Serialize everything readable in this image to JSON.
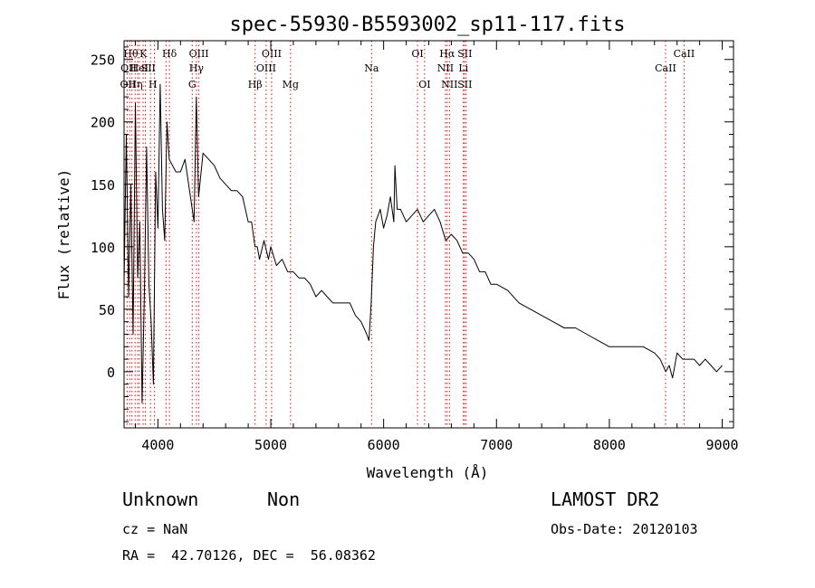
{
  "chart_data": {
    "type": "line",
    "title": "spec-55930-B5593002_sp11-117.fits",
    "xlabel": "Wavelength (Å)",
    "ylabel": "Flux (relative)",
    "xlim": [
      3700,
      9100
    ],
    "ylim": [
      -45,
      265
    ],
    "x_ticks": [
      4000,
      5000,
      6000,
      7000,
      8000,
      9000
    ],
    "y_ticks": [
      0,
      50,
      100,
      150,
      200,
      250
    ],
    "grid": false,
    "series": [
      {
        "x": [
          3700,
          3720,
          3740,
          3760,
          3780,
          3800,
          3820,
          3840,
          3860,
          3880,
          3900,
          3920,
          3940,
          3960,
          3980,
          4000,
          4020,
          4040,
          4060,
          4080,
          4100,
          4130,
          4160,
          4200,
          4240,
          4280,
          4320,
          4340,
          4360,
          4400,
          4450,
          4500,
          4550,
          4600,
          4650,
          4700,
          4750,
          4800,
          4830,
          4860,
          4880,
          4900,
          4940,
          4980,
          5000,
          5050,
          5100,
          5150,
          5200,
          5250,
          5300,
          5350,
          5400,
          5450,
          5500,
          5550,
          5600,
          5650,
          5700,
          5750,
          5800,
          5850,
          5870,
          5890,
          5910,
          5930,
          5950,
          5970,
          6000,
          6030,
          6060,
          6090,
          6100,
          6120,
          6150,
          6200,
          6250,
          6300,
          6350,
          6400,
          6450,
          6500,
          6550,
          6600,
          6650,
          6700,
          6750,
          6800,
          6850,
          6900,
          6950,
          7000,
          7100,
          7200,
          7300,
          7400,
          7500,
          7600,
          7700,
          7800,
          7900,
          8000,
          8100,
          8200,
          8300,
          8400,
          8450,
          8500,
          8530,
          8560,
          8600,
          8650,
          8700,
          8750,
          8800,
          8850,
          8900,
          8950,
          9000
        ],
        "y": [
          70,
          190,
          60,
          150,
          30,
          215,
          75,
          120,
          -25,
          60,
          180,
          70,
          40,
          -10,
          160,
          115,
          230,
          130,
          105,
          200,
          170,
          165,
          160,
          160,
          170,
          145,
          120,
          220,
          140,
          175,
          170,
          165,
          155,
          150,
          145,
          145,
          140,
          120,
          120,
          100,
          100,
          90,
          105,
          90,
          100,
          85,
          90,
          80,
          80,
          75,
          75,
          70,
          60,
          65,
          60,
          55,
          55,
          55,
          55,
          45,
          40,
          30,
          25,
          55,
          100,
          120,
          125,
          130,
          115,
          125,
          140,
          120,
          165,
          130,
          130,
          120,
          125,
          130,
          120,
          125,
          130,
          120,
          105,
          110,
          105,
          95,
          95,
          90,
          80,
          80,
          70,
          70,
          65,
          55,
          50,
          45,
          40,
          35,
          35,
          30,
          25,
          20,
          20,
          20,
          20,
          15,
          10,
          0,
          5,
          -5,
          15,
          10,
          10,
          10,
          5,
          10,
          5,
          0,
          5
        ]
      }
    ],
    "lines": [
      {
        "x": 3727,
        "labels": [
          "OII"
        ]
      },
      {
        "x": 3750,
        "labels": [
          "OII"
        ]
      },
      {
        "x": 3770,
        "labels": [
          "Hθ"
        ]
      },
      {
        "x": 3798,
        "labels": [
          "Hη"
        ]
      },
      {
        "x": 3820,
        "labels": [
          "HeI"
        ]
      },
      {
        "x": 3835,
        "labels": [
          "Hη"
        ]
      },
      {
        "x": 3869,
        "labels": [
          "K"
        ]
      },
      {
        "x": 3889,
        "labels": [
          "SII"
        ]
      },
      {
        "x": 3934,
        "labels": [
          "H"
        ]
      },
      {
        "x": 3969,
        "labels": []
      },
      {
        "x": 4072,
        "labels": [
          "SII"
        ]
      },
      {
        "x": 4102,
        "labels": [
          "Hδ"
        ]
      },
      {
        "x": 4304,
        "labels": [
          "G"
        ]
      },
      {
        "x": 4341,
        "labels": [
          "Hγ"
        ]
      },
      {
        "x": 4363,
        "labels": [
          "OIII"
        ]
      },
      {
        "x": 4861,
        "labels": [
          "Hβ"
        ]
      },
      {
        "x": 4959,
        "labels": [
          "OIII"
        ]
      },
      {
        "x": 5007,
        "labels": [
          "OIII"
        ]
      },
      {
        "x": 5175,
        "labels": [
          "Mg"
        ]
      },
      {
        "x": 5893,
        "labels": [
          "Na"
        ]
      },
      {
        "x": 6300,
        "labels": [
          "OI"
        ]
      },
      {
        "x": 6363,
        "labels": [
          "OI"
        ]
      },
      {
        "x": 6548,
        "labels": [
          "NII"
        ]
      },
      {
        "x": 6563,
        "labels": [
          "Hα"
        ]
      },
      {
        "x": 6583,
        "labels": [
          "NII"
        ]
      },
      {
        "x": 6707,
        "labels": [
          "Li"
        ]
      },
      {
        "x": 6716,
        "labels": [
          "SII"
        ]
      },
      {
        "x": 6731,
        "labels": [
          "SII"
        ]
      },
      {
        "x": 8498,
        "labels": [
          "CaII"
        ]
      },
      {
        "x": 8662,
        "labels": [
          "CaII"
        ]
      }
    ],
    "line_label_rows": [
      {
        "row": 0,
        "items": [
          {
            "x": 3760,
            "text": "Hθ"
          },
          {
            "x": 3870,
            "text": "K"
          },
          {
            "x": 4102,
            "text": "Hδ"
          },
          {
            "x": 4363,
            "text": "OIII"
          },
          {
            "x": 5007,
            "text": "OIII"
          },
          {
            "x": 6300,
            "text": "OI"
          },
          {
            "x": 6563,
            "text": "Hα"
          },
          {
            "x": 6720,
            "text": "SII"
          },
          {
            "x": 8662,
            "text": "CaII"
          }
        ]
      },
      {
        "row": 1,
        "items": [
          {
            "x": 3740,
            "text": "OII"
          },
          {
            "x": 3835,
            "text": "HeI"
          },
          {
            "x": 3915,
            "text": "SII"
          },
          {
            "x": 4341,
            "text": "Hγ"
          },
          {
            "x": 4959,
            "text": "OIII"
          },
          {
            "x": 5893,
            "text": "Na"
          },
          {
            "x": 6548,
            "text": "NII"
          },
          {
            "x": 6707,
            "text": "Li"
          },
          {
            "x": 8498,
            "text": "CaII"
          }
        ]
      },
      {
        "row": 2,
        "items": [
          {
            "x": 3735,
            "text": "OII"
          },
          {
            "x": 3800,
            "text": "Hη"
          },
          {
            "x": 3955,
            "text": "H"
          },
          {
            "x": 4304,
            "text": "G"
          },
          {
            "x": 4861,
            "text": "Hβ"
          },
          {
            "x": 5175,
            "text": "Mg"
          },
          {
            "x": 6363,
            "text": "OI"
          },
          {
            "x": 6583,
            "text": "NII"
          },
          {
            "x": 6720,
            "text": "SII"
          }
        ]
      }
    ],
    "marker_color": "#ff0000",
    "line_color": "#000000"
  },
  "info": {
    "object_class": "Unknown",
    "subclass": "Non",
    "survey": "LAMOST DR2",
    "cz": "cz = NaN",
    "obs_date": "Obs-Date: 20120103",
    "coords": "RA =  42.70126, DEC =  56.08362"
  }
}
